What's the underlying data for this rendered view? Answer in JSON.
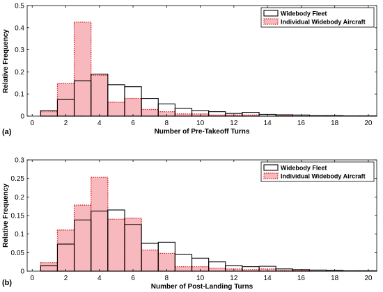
{
  "chart_data": [
    {
      "type": "bar",
      "panel_label": "(a)",
      "xlabel": "Number of Pre-Takeoff Turns",
      "ylabel": "Relative Frequency",
      "xlim": [
        -0.3,
        20.5
      ],
      "ylim": [
        0,
        0.5
      ],
      "xticks": [
        0,
        2,
        4,
        6,
        8,
        10,
        12,
        14,
        16,
        18,
        20
      ],
      "yticks": [
        0,
        0.1,
        0.2,
        0.3,
        0.4,
        0.5
      ],
      "ytick_labels": [
        "0",
        "0.1",
        "0.2",
        "0.3",
        "0.4",
        "0.5"
      ],
      "bin_width": 1,
      "x": [
        1,
        2,
        3,
        4,
        5,
        6,
        7,
        8,
        9,
        10,
        11,
        12,
        13,
        14,
        15,
        16,
        17,
        18,
        19,
        20
      ],
      "legend_position": "top-right",
      "series": [
        {
          "name": "Widebody Fleet",
          "style": "outline",
          "values": [
            0.025,
            0.075,
            0.16,
            0.19,
            0.142,
            0.133,
            0.08,
            0.055,
            0.035,
            0.025,
            0.02,
            0.012,
            0.017,
            0.008,
            0.006,
            0.005,
            0.002,
            0.002,
            0.001,
            0.001
          ]
        },
        {
          "name": "Individual Widebody Aircraft",
          "style": "dotted-fill",
          "values": [
            0.02,
            0.148,
            0.425,
            0.185,
            0.063,
            0.08,
            0.03,
            0.02,
            0.01,
            0.01,
            0.005,
            0.005,
            0.005,
            0.0,
            0.005,
            0.0,
            0.0,
            0.0,
            0.0,
            0.0
          ]
        }
      ]
    },
    {
      "type": "bar",
      "panel_label": "(b)",
      "xlabel": "Number of Post-Landing Turns",
      "ylabel": "Relative Frequency",
      "xlim": [
        -0.3,
        20.5
      ],
      "ylim": [
        0,
        0.3
      ],
      "xticks": [
        0,
        2,
        4,
        6,
        8,
        10,
        12,
        14,
        16,
        18,
        20
      ],
      "yticks": [
        0,
        0.05,
        0.1,
        0.15,
        0.2,
        0.25,
        0.3
      ],
      "ytick_labels": [
        "0",
        "0.05",
        "0.1",
        "0.15",
        "0.2",
        "0.25",
        "0.3"
      ],
      "bin_width": 1,
      "x": [
        1,
        2,
        3,
        4,
        5,
        6,
        7,
        8,
        9,
        10,
        11,
        12,
        13,
        14,
        15,
        16,
        17,
        18,
        19,
        20
      ],
      "legend_position": "top-right",
      "series": [
        {
          "name": "Widebody Fleet",
          "style": "outline",
          "values": [
            0.015,
            0.073,
            0.138,
            0.162,
            0.165,
            0.126,
            0.075,
            0.078,
            0.045,
            0.035,
            0.025,
            0.015,
            0.012,
            0.013,
            0.006,
            0.004,
            0.003,
            0.002,
            0.001,
            0.001
          ]
        },
        {
          "name": "Individual Widebody Aircraft",
          "style": "dotted-fill",
          "values": [
            0.023,
            0.111,
            0.178,
            0.253,
            0.14,
            0.143,
            0.057,
            0.048,
            0.012,
            0.012,
            0.008,
            0.006,
            0.004,
            0.006,
            0.002,
            0.002,
            0.0,
            0.0,
            0.0,
            0.0
          ]
        }
      ]
    }
  ],
  "colors": {
    "fleet_edge": "#000000",
    "individual_edge": "#d62020",
    "individual_fill": "#f7b9bd",
    "axis": "#000000"
  }
}
